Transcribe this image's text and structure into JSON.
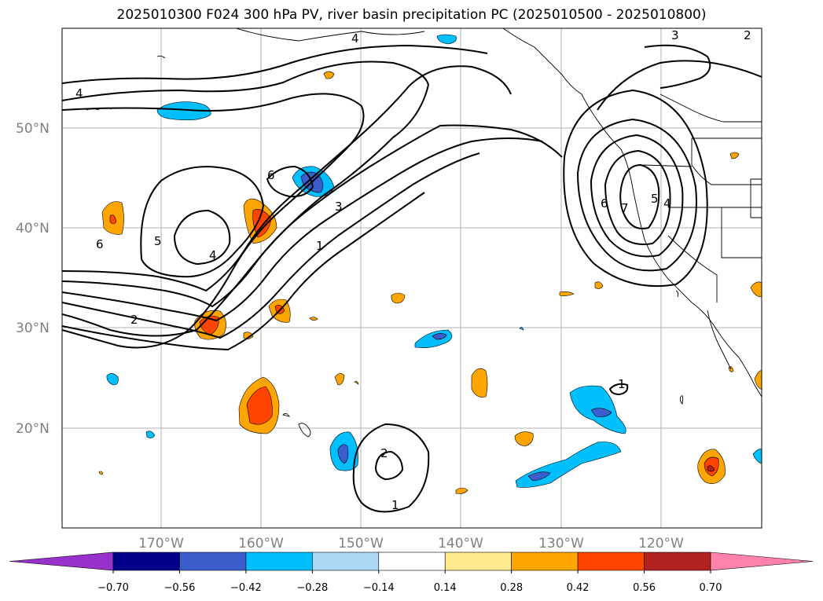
{
  "title": "2025010300 F024 300 hPa PV, river basin precipitation PC (2025010500 - 2025010800)",
  "map": {
    "lat_ticks": [
      "50°N",
      "40°N",
      "30°N",
      "20°N"
    ],
    "lon_ticks": [
      "170°W",
      "160°W",
      "150°W",
      "140°W",
      "130°W",
      "120°W"
    ],
    "grid": true
  },
  "pv_contour_labels": [
    "4",
    "4",
    "3",
    "2",
    "6",
    "4",
    "5",
    "6",
    "3",
    "1",
    "2",
    "6",
    "7",
    "5",
    "4",
    "2",
    "1",
    "1"
  ],
  "colorbar": {
    "extend": "both",
    "tick_labels": [
      "−0.70",
      "−0.56",
      "−0.42",
      "−0.28",
      "−0.14",
      "0.14",
      "0.28",
      "0.42",
      "0.56",
      "0.70"
    ],
    "colors": [
      "#9932cc",
      "#00008b",
      "#3a5fcd",
      "#00bfff",
      "#add8f5",
      "#ffffff",
      "#ffe98f",
      "#ffa500",
      "#ff4500",
      "#b22222",
      "#ff82ab"
    ]
  }
}
